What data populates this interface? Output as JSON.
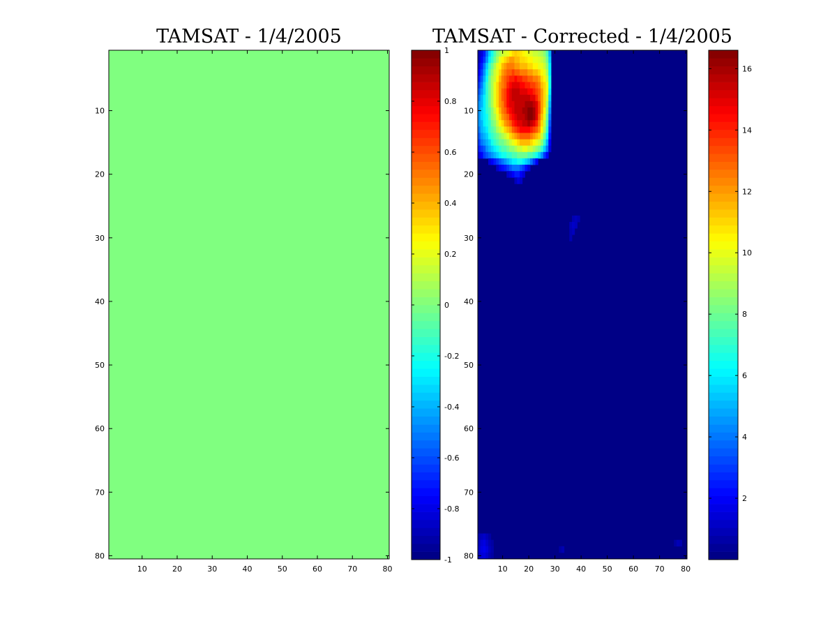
{
  "chart_data": [
    {
      "type": "heatmap",
      "title": "TAMSAT - 1/4/2005",
      "xlabel": "",
      "ylabel": "",
      "xlim": [
        0.5,
        80.5
      ],
      "ylim": [
        0.5,
        80.5
      ],
      "y_reversed": true,
      "xticks": [
        10,
        20,
        30,
        40,
        50,
        60,
        70,
        80
      ],
      "yticks": [
        10,
        20,
        30,
        40,
        50,
        60,
        70,
        80
      ],
      "grid_size": [
        80,
        80
      ],
      "fill_value": 0,
      "colormap": "jet",
      "colorbar": {
        "range": [
          -1,
          1
        ],
        "ticks": [
          -1,
          -0.8,
          -0.6,
          -0.4,
          -0.2,
          0,
          0.2,
          0.4,
          0.6,
          0.8,
          1
        ]
      }
    },
    {
      "type": "heatmap",
      "title": "TAMSAT - Corrected - 1/4/2005",
      "xlabel": "",
      "ylabel": "",
      "xlim": [
        0.5,
        80.5
      ],
      "ylim": [
        0.5,
        80.5
      ],
      "y_reversed": true,
      "xticks": [
        10,
        20,
        30,
        40,
        50,
        60,
        70,
        80
      ],
      "yticks": [
        10,
        20,
        30,
        40,
        50,
        60,
        70,
        80
      ],
      "grid_size": [
        80,
        80
      ],
      "colormap": "jet",
      "colorbar": {
        "range": [
          0,
          16.6
        ],
        "ticks": [
          2,
          4,
          6,
          8,
          10,
          12,
          14,
          16
        ]
      },
      "background_value": 0.1,
      "rows": [
        {
          "y": 1,
          "x_start": 1,
          "values": [
            0.9,
            1.5,
            2.5,
            4.0,
            5.5,
            6.5,
            7.5,
            8.5,
            9.0,
            9.5,
            9.8,
            10.0,
            10.5,
            11.0,
            11.2,
            11.0,
            10.8,
            10.5,
            10.2,
            10.0,
            9.8,
            9.5,
            9.5,
            9.2,
            9.0,
            8.5,
            7.5,
            5.0
          ]
        },
        {
          "y": 2,
          "x_start": 1,
          "values": [
            1.0,
            2.0,
            3.0,
            4.5,
            6.0,
            7.0,
            8.0,
            9.0,
            10.0,
            10.5,
            11.0,
            11.5,
            12.0,
            12.0,
            11.5,
            11.5,
            11.0,
            11.0,
            10.8,
            10.5,
            10.5,
            10.0,
            10.0,
            9.8,
            9.5,
            9.0,
            8.0,
            5.5
          ]
        },
        {
          "y": 3,
          "x_start": 1,
          "values": [
            1.5,
            2.5,
            4.0,
            5.5,
            7.0,
            8.0,
            9.0,
            10.0,
            10.5,
            11.5,
            12.0,
            12.5,
            12.5,
            12.5,
            12.0,
            12.0,
            11.5,
            11.5,
            11.5,
            11.0,
            11.0,
            10.5,
            10.5,
            10.0,
            10.0,
            9.5,
            8.5,
            6.0
          ]
        },
        {
          "y": 4,
          "x_start": 1,
          "values": [
            2.0,
            3.0,
            4.5,
            6.0,
            7.5,
            8.5,
            9.5,
            10.0,
            11.0,
            12.0,
            12.5,
            13.0,
            13.0,
            13.5,
            13.0,
            13.0,
            12.5,
            12.5,
            12.5,
            12.0,
            12.0,
            11.5,
            11.5,
            11.0,
            10.5,
            10.0,
            9.0,
            6.0
          ]
        },
        {
          "y": 5,
          "x_start": 1,
          "values": [
            2.5,
            3.5,
            5.0,
            6.5,
            8.0,
            9.0,
            9.5,
            10.5,
            11.5,
            12.5,
            13.0,
            13.5,
            14.0,
            14.0,
            14.5,
            14.0,
            14.0,
            13.5,
            13.5,
            13.0,
            13.0,
            12.5,
            12.5,
            12.0,
            11.0,
            10.5,
            9.5,
            6.5
          ]
        },
        {
          "y": 6,
          "x_start": 1,
          "values": [
            3.0,
            4.0,
            5.5,
            7.0,
            8.0,
            9.0,
            10.0,
            11.0,
            12.0,
            12.5,
            13.0,
            14.0,
            14.5,
            15.0,
            15.0,
            15.0,
            14.5,
            14.5,
            14.0,
            14.0,
            13.5,
            13.5,
            13.0,
            12.5,
            11.5,
            11.0,
            10.0,
            6.5
          ]
        },
        {
          "y": 7,
          "x_start": 1,
          "values": [
            3.5,
            4.5,
            5.5,
            7.0,
            8.0,
            9.0,
            10.0,
            11.0,
            12.0,
            13.0,
            13.5,
            14.5,
            15.0,
            15.5,
            15.5,
            15.5,
            15.0,
            15.0,
            15.0,
            14.5,
            14.5,
            14.0,
            13.5,
            13.0,
            12.0,
            11.0,
            10.0,
            6.0
          ]
        },
        {
          "y": 8,
          "x_start": 1,
          "values": [
            4.0,
            5.0,
            6.0,
            7.0,
            8.0,
            9.0,
            10.0,
            11.0,
            12.0,
            13.0,
            13.5,
            14.5,
            15.0,
            15.5,
            15.5,
            15.5,
            15.5,
            15.5,
            15.5,
            15.5,
            15.0,
            15.0,
            14.0,
            13.0,
            12.0,
            11.0,
            9.5,
            5.5
          ]
        },
        {
          "y": 9,
          "x_start": 1,
          "values": [
            4.5,
            5.0,
            6.0,
            7.0,
            8.0,
            9.0,
            10.0,
            11.0,
            12.0,
            12.5,
            13.5,
            14.5,
            15.0,
            15.0,
            15.5,
            15.5,
            15.5,
            15.5,
            16.0,
            16.0,
            16.0,
            15.5,
            15.0,
            13.5,
            12.0,
            11.0,
            9.0,
            5.0
          ]
        },
        {
          "y": 10,
          "x_start": 1,
          "values": [
            4.5,
            5.5,
            6.0,
            7.0,
            7.5,
            8.5,
            9.5,
            10.5,
            11.5,
            12.5,
            13.0,
            14.0,
            14.5,
            15.0,
            15.5,
            15.5,
            15.5,
            16.0,
            16.0,
            16.5,
            16.5,
            16.0,
            15.0,
            13.5,
            12.0,
            10.5,
            8.5,
            4.5
          ]
        },
        {
          "y": 11,
          "x_start": 1,
          "values": [
            4.5,
            5.5,
            6.0,
            6.5,
            7.5,
            8.5,
            9.0,
            10.0,
            11.0,
            12.0,
            12.5,
            13.0,
            14.0,
            14.5,
            15.0,
            15.5,
            15.5,
            15.5,
            16.0,
            16.5,
            16.5,
            16.0,
            15.0,
            13.0,
            11.5,
            10.0,
            8.0,
            4.0
          ]
        },
        {
          "y": 12,
          "x_start": 1,
          "values": [
            4.5,
            5.0,
            6.0,
            6.5,
            7.0,
            8.0,
            8.5,
            9.5,
            10.5,
            11.0,
            12.0,
            12.5,
            13.0,
            14.0,
            14.5,
            15.0,
            15.0,
            15.5,
            15.5,
            16.0,
            15.5,
            15.0,
            14.0,
            12.5,
            11.0,
            9.5,
            7.5,
            3.5
          ]
        },
        {
          "y": 13,
          "x_start": 1,
          "values": [
            4.0,
            5.0,
            5.5,
            6.0,
            7.0,
            7.5,
            8.0,
            9.0,
            9.5,
            10.0,
            11.0,
            11.5,
            12.0,
            13.0,
            13.5,
            14.0,
            14.5,
            14.5,
            14.5,
            14.5,
            14.0,
            13.5,
            13.0,
            12.0,
            10.5,
            9.0,
            7.0,
            3.0
          ]
        },
        {
          "y": 14,
          "x_start": 1,
          "values": [
            3.5,
            4.5,
            5.0,
            5.5,
            6.5,
            7.0,
            7.5,
            8.0,
            8.5,
            9.0,
            9.5,
            10.0,
            11.0,
            11.5,
            12.0,
            12.5,
            13.0,
            13.0,
            13.0,
            13.0,
            12.5,
            12.0,
            11.5,
            11.0,
            9.5,
            8.0,
            6.0,
            2.5
          ]
        },
        {
          "y": 15,
          "x_start": 1,
          "values": [
            3.0,
            4.0,
            4.5,
            5.0,
            5.5,
            6.5,
            7.0,
            7.5,
            8.0,
            8.0,
            8.5,
            9.0,
            9.5,
            10.0,
            10.5,
            11.0,
            11.5,
            11.5,
            11.5,
            11.5,
            11.0,
            10.5,
            10.0,
            9.5,
            8.5,
            7.0,
            5.0,
            2.0
          ]
        },
        {
          "y": 16,
          "x_start": 1,
          "values": [
            2.5,
            3.0,
            3.5,
            4.5,
            5.0,
            5.5,
            6.0,
            6.5,
            7.0,
            7.5,
            7.5,
            8.0,
            8.5,
            8.5,
            9.0,
            9.5,
            9.5,
            10.0,
            10.0,
            9.5,
            9.5,
            9.0,
            8.5,
            8.0,
            7.0,
            5.5,
            4.0,
            1.5
          ]
        },
        {
          "y": 17,
          "x_start": 1,
          "values": [
            1.5,
            2.0,
            3.0,
            3.5,
            4.0,
            4.5,
            5.0,
            5.5,
            6.0,
            6.5,
            6.5,
            7.0,
            7.0,
            7.5,
            7.5,
            8.0,
            8.0,
            8.0,
            8.0,
            7.5,
            7.5,
            7.0,
            6.5,
            5.5,
            4.5,
            3.0,
            2.0
          ]
        },
        {
          "y": 18,
          "x_start": 5,
          "values": [
            1.5,
            2.0,
            2.5,
            3.0,
            3.5,
            4.0,
            4.5,
            5.0,
            5.5,
            6.0,
            6.0,
            6.5,
            6.5,
            6.0,
            5.5,
            5.0,
            4.0,
            3.0,
            2.0
          ]
        },
        {
          "y": 19,
          "x_start": 8,
          "values": [
            1.2,
            1.8,
            2.2,
            2.5,
            3.0,
            3.5,
            4.0,
            4.0,
            4.0,
            3.5,
            3.0,
            2.2,
            1.5
          ]
        },
        {
          "y": 20,
          "x_start": 12,
          "values": [
            1.2,
            1.5,
            2.0,
            2.5,
            2.5,
            2.0,
            1.5
          ]
        },
        {
          "y": 21,
          "x_start": 15,
          "values": [
            1.0,
            1.5,
            1.2
          ]
        },
        {
          "y": 27,
          "x_start": 37,
          "values": [
            0.8,
            1.0,
            0.8
          ]
        },
        {
          "y": 28,
          "x_start": 36,
          "values": [
            0.9,
            1.2,
            1.0
          ]
        },
        {
          "y": 29,
          "x_start": 36,
          "values": [
            0.8,
            1.0
          ]
        },
        {
          "y": 30,
          "x_start": 36,
          "values": [
            0.8
          ]
        },
        {
          "y": 77,
          "x_start": 1,
          "values": [
            0.8,
            1.0,
            1.2,
            0.9,
            0.6
          ]
        },
        {
          "y": 78,
          "x_start": 1,
          "values": [
            1.0,
            1.4,
            1.6,
            1.2,
            0.8,
            0.6
          ]
        },
        {
          "y": 79,
          "x_start": 1,
          "values": [
            1.2,
            1.6,
            1.8,
            1.5,
            1.0,
            0.7
          ]
        },
        {
          "y": 80,
          "x_start": 1,
          "values": [
            1.0,
            1.4,
            1.5,
            1.2,
            0.8,
            0.6
          ]
        },
        {
          "y": 78,
          "x_start": 76,
          "values": [
            0.6,
            0.9,
            0.8
          ]
        },
        {
          "y": 79,
          "x_start": 32,
          "values": [
            0.6,
            0.8
          ]
        }
      ]
    }
  ]
}
